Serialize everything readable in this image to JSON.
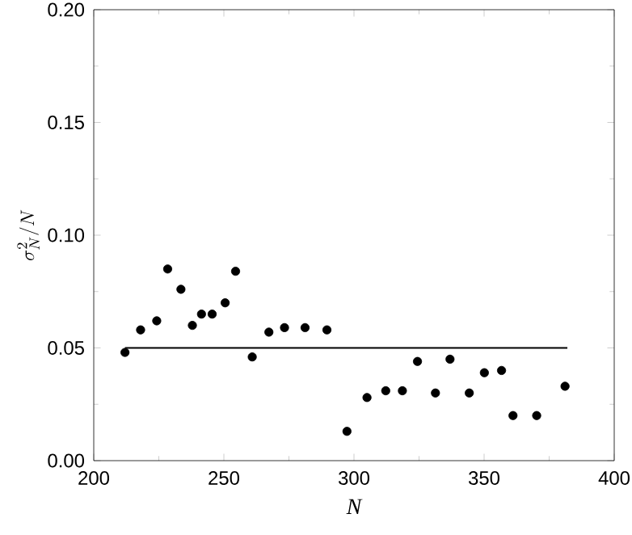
{
  "chart_data": {
    "type": "scatter",
    "xlabel": "N",
    "ylabel": "\\sigma_N^2/N",
    "marker": "circle",
    "xlim": [
      200,
      400
    ],
    "ylim": [
      0,
      0.2
    ],
    "xticks": [
      200,
      250,
      300,
      350,
      400
    ],
    "yticks": [
      {
        "value": 0,
        "label": "0.00"
      },
      {
        "value": 0.05,
        "label": "0.05"
      },
      {
        "value": 0.1,
        "label": "0.10"
      },
      {
        "value": 0.15,
        "label": "0.15"
      },
      {
        "value": 0.2,
        "label": "0.20"
      }
    ],
    "series": [
      {
        "color": "#000000",
        "x": [
          212.0,
          218.0,
          224.2,
          228.4,
          233.5,
          237.9,
          241.4,
          245.5,
          250.5,
          254.5,
          260.9,
          267.3,
          273.3,
          281.2,
          289.6,
          297.3,
          305.0,
          312.2,
          318.6,
          324.4,
          331.3,
          336.9,
          344.3,
          350.1,
          356.7,
          361.1,
          370.2,
          381.1
        ],
        "values": [
          0.048,
          0.058,
          0.062,
          0.085,
          0.076,
          0.06,
          0.065,
          0.065,
          0.07,
          0.084,
          0.046,
          0.057,
          0.059,
          0.059,
          0.058,
          0.013,
          0.028,
          0.031,
          0.031,
          0.044,
          0.03,
          0.045,
          0.03,
          0.039,
          0.04,
          0.02,
          0.02,
          0.033
        ]
      },
      {
        "type": "line",
        "color": "#000000",
        "marker": "none",
        "x": [
          212,
          382
        ],
        "values": [
          0.05,
          0.05
        ]
      }
    ]
  }
}
